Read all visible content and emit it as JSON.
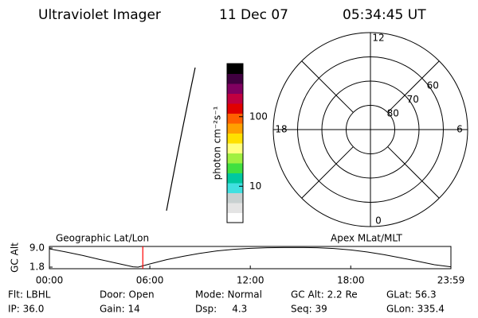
{
  "header": {
    "instrument": "Ultraviolet Imager",
    "date": "11 Dec 07",
    "time": "05:34:45 UT"
  },
  "chart_data": [
    {
      "type": "polar",
      "rlim": [
        90,
        50
      ],
      "rticks": [
        60,
        70,
        80
      ],
      "thetaticks": [
        0,
        6,
        12,
        18
      ],
      "thetalim": [
        0,
        24
      ],
      "color": "#000000"
    },
    {
      "type": "colorbar",
      "label": "photon cm⁻²s⁻¹",
      "log_scale": true,
      "clim": [
        3,
        580
      ],
      "ticks": [
        10,
        100
      ],
      "colors": [
        "#ffffff",
        "#e4e4e4",
        "#c8d0d0",
        "#40e0e0",
        "#00c8a0",
        "#40e040",
        "#a0f040",
        "#ffff80",
        "#ffe000",
        "#ffa000",
        "#ff6000",
        "#e00000",
        "#c00040",
        "#800060",
        "#400040",
        "#000000"
      ]
    },
    {
      "type": "line",
      "ylabel": "GC Alt",
      "left_title": "Geographic Lat/Lon",
      "right_title": "Apex MLat/MLT",
      "x": [
        0,
        1,
        2,
        3,
        4,
        5,
        5.3,
        6,
        7,
        8,
        9,
        10,
        11,
        12,
        13,
        14,
        15,
        16,
        17,
        18,
        19,
        20,
        21,
        22,
        23,
        23.983
      ],
      "values": [
        8.7,
        7.5,
        6.2,
        4.7,
        3.3,
        1.9,
        1.8,
        3.0,
        4.6,
        5.9,
        7.0,
        7.9,
        8.5,
        8.9,
        9.1,
        9.2,
        9.2,
        9.1,
        8.8,
        8.3,
        7.5,
        6.5,
        5.3,
        4.0,
        2.7,
        1.9
      ],
      "color": "#000000",
      "current_time": 5.579,
      "marker_color": "#ff0000",
      "xlim": [
        0,
        23.983
      ],
      "ylim": [
        1.2,
        9.6
      ],
      "xticks": [
        {
          "value": 0,
          "label": "00:00"
        },
        {
          "value": 6,
          "label": "06:00"
        },
        {
          "value": 12,
          "label": "12:00"
        },
        {
          "value": 18,
          "label": "18:00"
        },
        {
          "value": 23.983,
          "label": "23:59"
        }
      ],
      "yticks": [
        {
          "value": 1.8,
          "label": "1.8"
        },
        {
          "value": 9.0,
          "label": "9.0"
        }
      ]
    }
  ],
  "info": [
    [
      "Flt: LBHL",
      "Door: Open",
      "Mode: Normal",
      "GC Alt: 2.2 Re",
      "GLat: 56.3"
    ],
    [
      "IP: 36.0",
      "Gain: 14",
      "Dsp:     4.3",
      "Seq: 39",
      "GLon: 335.4"
    ]
  ]
}
